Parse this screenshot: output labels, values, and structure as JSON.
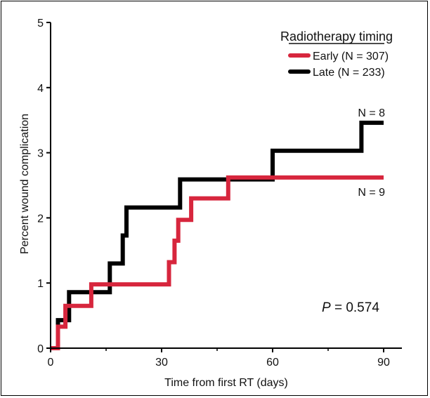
{
  "chart_data": {
    "type": "line",
    "step": true,
    "xlabel": "Time from first RT (days)",
    "ylabel": "Percent wound complication",
    "xlim": [
      0,
      90
    ],
    "ylim": [
      0,
      5
    ],
    "xticks": [
      0,
      30,
      60,
      90
    ],
    "yticks": [
      0,
      1,
      2,
      3,
      4,
      5
    ],
    "grid": false,
    "legend": {
      "title": "Radiotherapy timing",
      "placement": "top-right",
      "entries": [
        {
          "label": "Early (N = 307)",
          "color": "#d7263d"
        },
        {
          "label": "Late (N = 233)",
          "color": "#000000"
        }
      ]
    },
    "series": [
      {
        "name": "Early (N = 307)",
        "color": "#d7263d",
        "points": [
          [
            0,
            0
          ],
          [
            2,
            0
          ],
          [
            2,
            0.33
          ],
          [
            4,
            0.33
          ],
          [
            4,
            0.65
          ],
          [
            11,
            0.65
          ],
          [
            11,
            0.98
          ],
          [
            32,
            0.98
          ],
          [
            32,
            1.32
          ],
          [
            33.5,
            1.32
          ],
          [
            33.5,
            1.65
          ],
          [
            34.5,
            1.65
          ],
          [
            34.5,
            1.97
          ],
          [
            38,
            1.97
          ],
          [
            38,
            2.3
          ],
          [
            48,
            2.3
          ],
          [
            48,
            2.62
          ],
          [
            90,
            2.62
          ]
        ],
        "end_label": "N = 9"
      },
      {
        "name": "Late (N = 233)",
        "color": "#000000",
        "points": [
          [
            0,
            0
          ],
          [
            2,
            0
          ],
          [
            2,
            0.43
          ],
          [
            5,
            0.43
          ],
          [
            5,
            0.86
          ],
          [
            16,
            0.86
          ],
          [
            16,
            1.3
          ],
          [
            19.5,
            1.3
          ],
          [
            19.5,
            1.73
          ],
          [
            20.5,
            1.73
          ],
          [
            20.5,
            2.16
          ],
          [
            35,
            2.16
          ],
          [
            35,
            2.59
          ],
          [
            60,
            2.59
          ],
          [
            60,
            3.03
          ],
          [
            84,
            3.03
          ],
          [
            84,
            3.46
          ],
          [
            90,
            3.46
          ]
        ],
        "end_label": "N = 8"
      }
    ],
    "annotations": [
      {
        "italic": "P",
        "text": " = 0.574"
      }
    ]
  }
}
